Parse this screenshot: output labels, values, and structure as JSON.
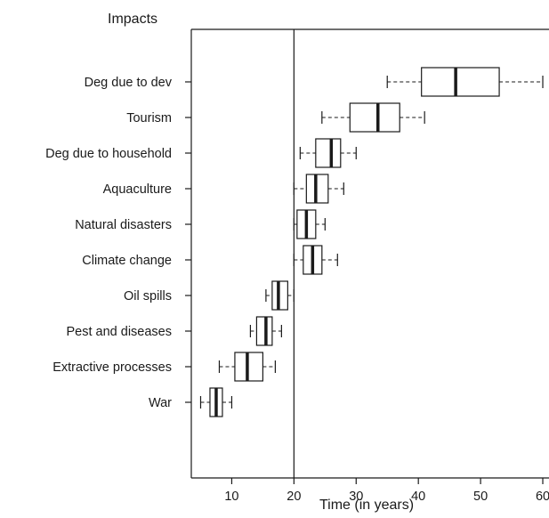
{
  "chart_data": {
    "type": "boxplot",
    "orientation": "horizontal",
    "title": "",
    "ylabel": "Impacts",
    "xlabel": "Time (in years)",
    "xlim": [
      3.5,
      61
    ],
    "x_ticks": [
      10,
      20,
      30,
      40,
      50,
      60
    ],
    "reference_line_x": 20,
    "grid": false,
    "legend": "none",
    "colors": {
      "stroke": "#1a1a1a",
      "background": "#ffffff"
    },
    "categories": [
      "Deg due to dev",
      "Tourism",
      "Deg due to household",
      "Aquaculture",
      "Natural disasters",
      "Climate change",
      "Oil spills",
      "Pest and diseases",
      "Extractive processes",
      "War"
    ],
    "boxes": [
      {
        "category": "Deg due to dev",
        "whisker_low": 35,
        "q1": 40.5,
        "median": 46,
        "q3": 53,
        "whisker_high": 60
      },
      {
        "category": "Tourism",
        "whisker_low": 24.5,
        "q1": 29,
        "median": 33.5,
        "q3": 37,
        "whisker_high": 41
      },
      {
        "category": "Deg due to household",
        "whisker_low": 21,
        "q1": 23.5,
        "median": 26,
        "q3": 27.5,
        "whisker_high": 30
      },
      {
        "category": "Aquaculture",
        "whisker_low": 20,
        "q1": 22,
        "median": 23.5,
        "q3": 25.5,
        "whisker_high": 28
      },
      {
        "category": "Natural disasters",
        "whisker_low": 20,
        "q1": 20.5,
        "median": 22,
        "q3": 23.5,
        "whisker_high": 25
      },
      {
        "category": "Climate change",
        "whisker_low": 20,
        "q1": 21.5,
        "median": 23,
        "q3": 24.5,
        "whisker_high": 27
      },
      {
        "category": "Oil spills",
        "whisker_low": 15.5,
        "q1": 16.5,
        "median": 17.5,
        "q3": 19,
        "whisker_high": 20
      },
      {
        "category": "Pest and diseases",
        "whisker_low": 13,
        "q1": 14,
        "median": 15.5,
        "q3": 16.5,
        "whisker_high": 18
      },
      {
        "category": "Extractive processes",
        "whisker_low": 8,
        "q1": 10.5,
        "median": 12.5,
        "q3": 15,
        "whisker_high": 17
      },
      {
        "category": "War",
        "whisker_low": 5,
        "q1": 6.5,
        "median": 7.5,
        "q3": 8.5,
        "whisker_high": 10
      }
    ]
  }
}
